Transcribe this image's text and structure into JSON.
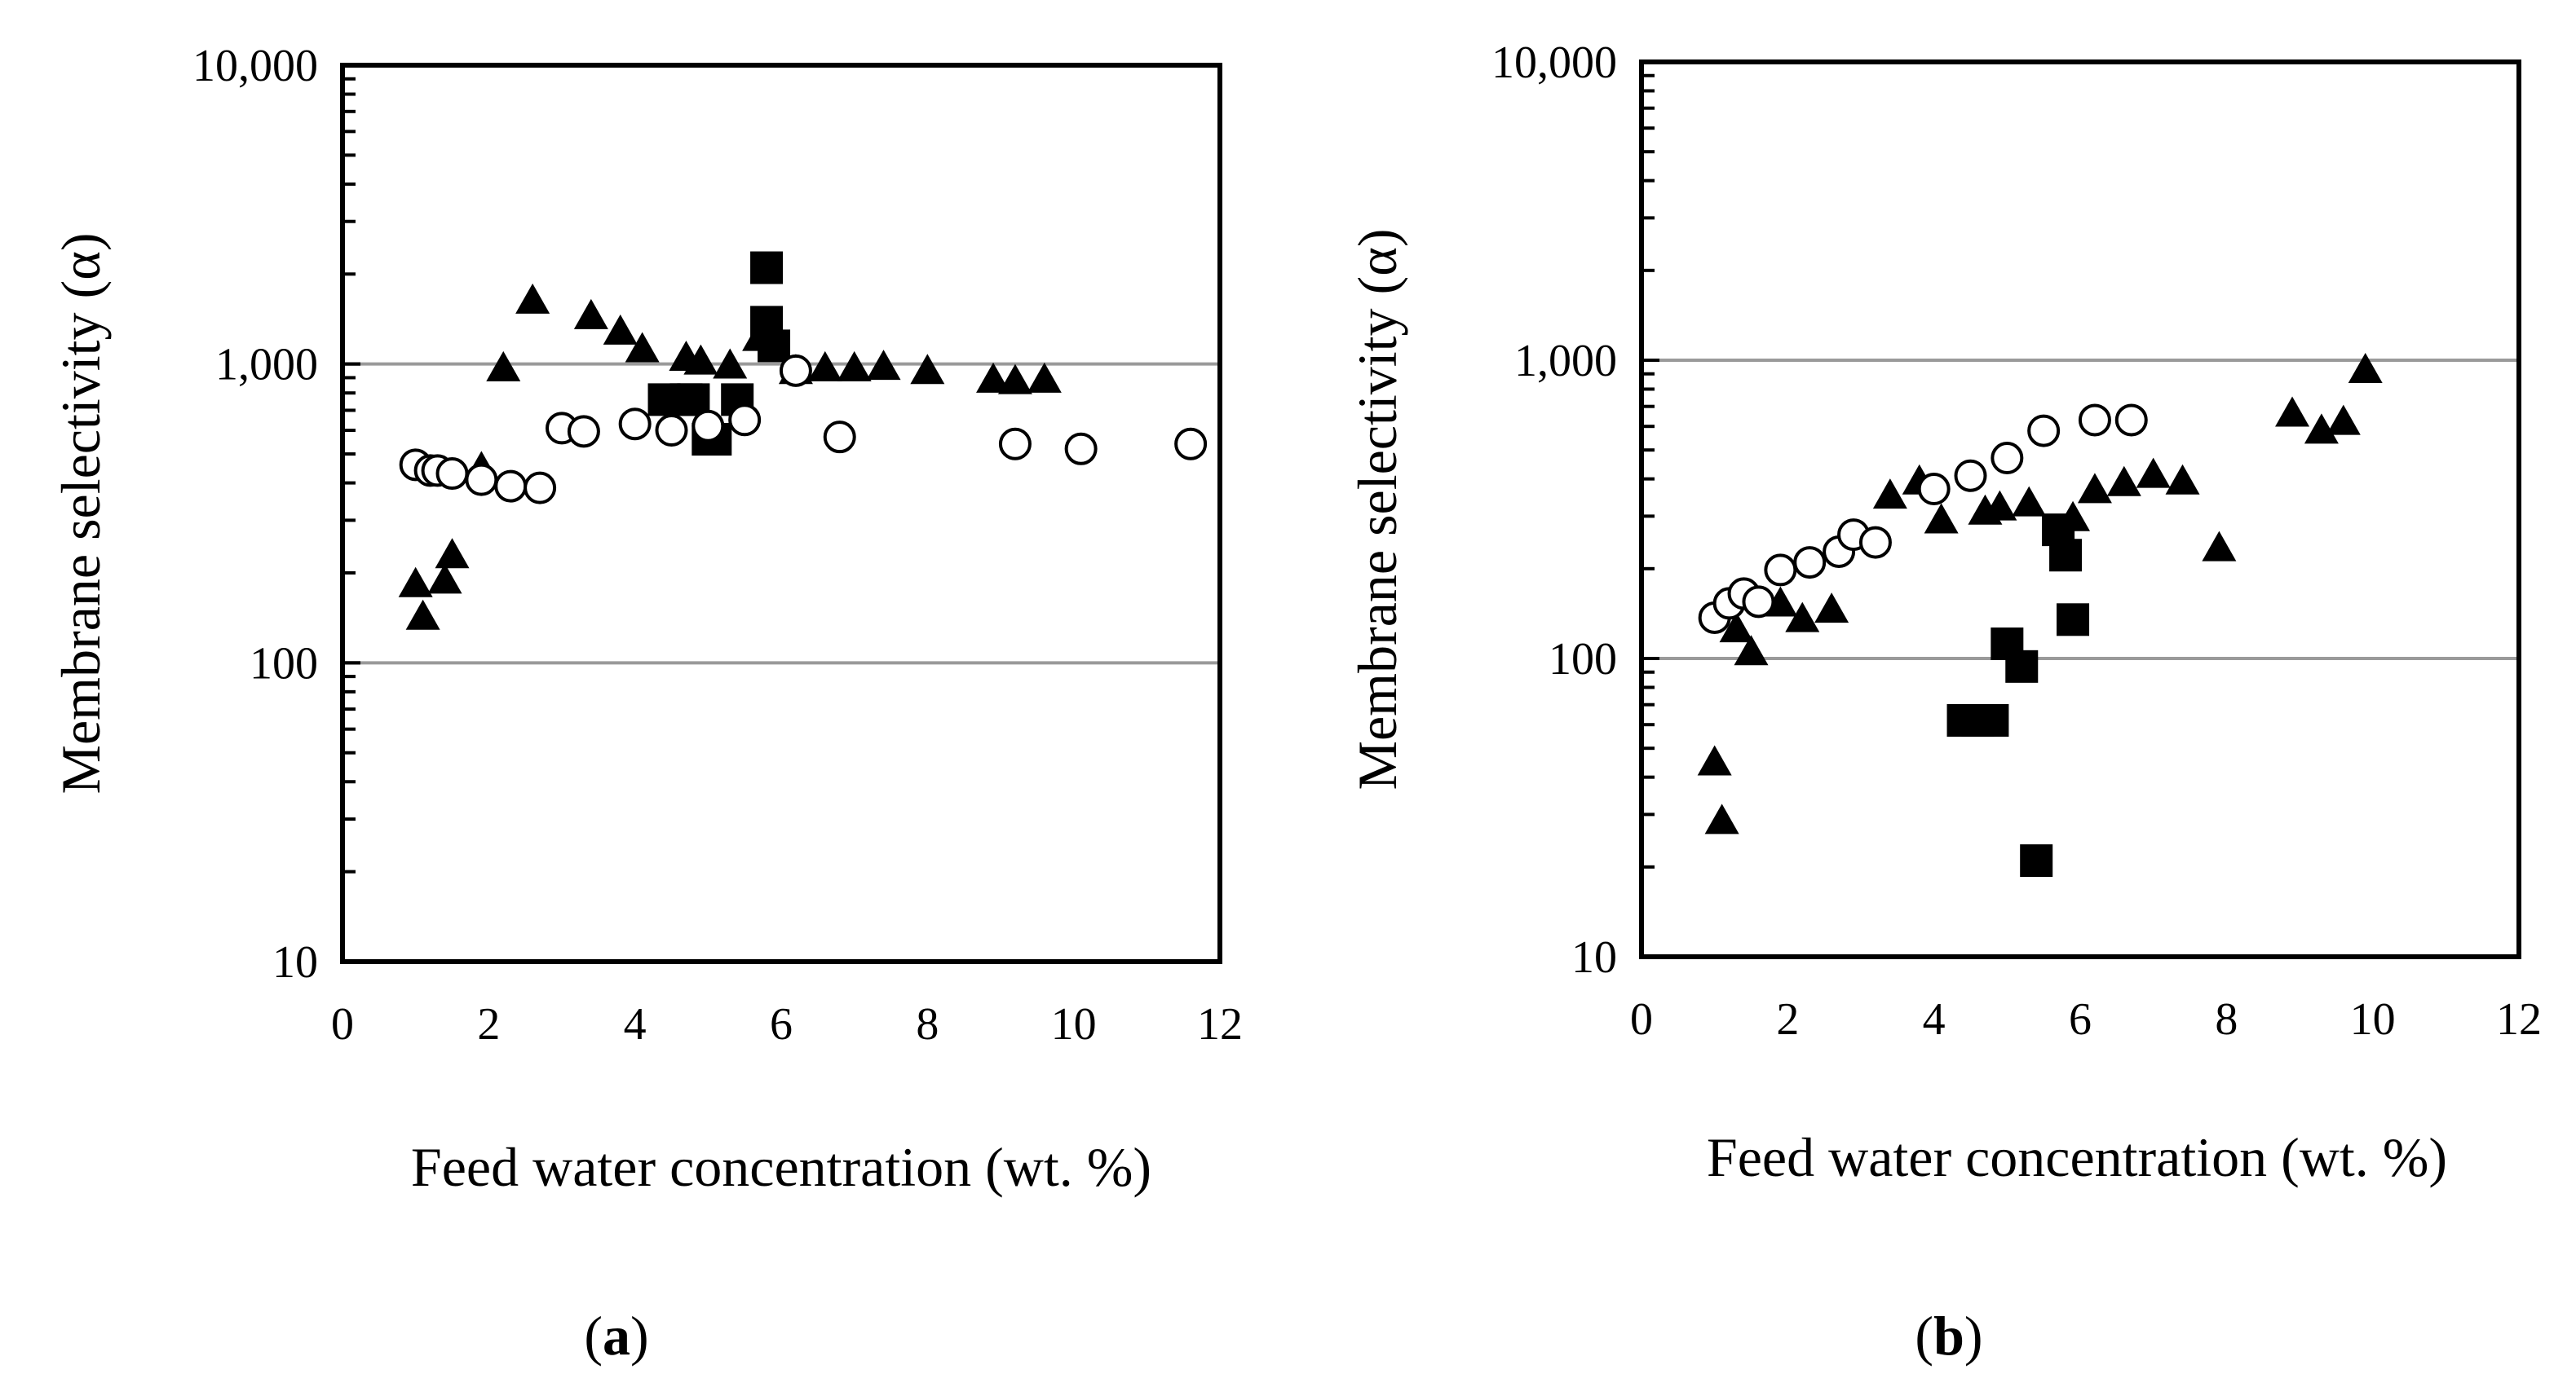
{
  "chart_data": [
    {
      "type": "scatter",
      "panel_label": "a",
      "xlabel": "Feed water concentration (wt. %)",
      "ylabel": "Membrane selectivity (α)",
      "xlim": [
        0,
        12
      ],
      "ylim": [
        10,
        10000
      ],
      "yscale": "log",
      "x_ticks": [
        "0",
        "2",
        "4",
        "6",
        "8",
        "10",
        "12"
      ],
      "y_ticks": [
        "10",
        "100",
        "1,000",
        "10,000"
      ],
      "gridlines_y": [
        100,
        1000
      ],
      "series": [
        {
          "name": "triangle",
          "marker": "filled-triangle",
          "x": [
            1.0,
            1.1,
            1.4,
            1.5,
            1.9,
            2.2,
            2.6,
            3.4,
            3.8,
            4.1,
            4.7,
            4.9,
            5.3,
            5.7,
            6.2,
            6.6,
            7.0,
            7.4,
            8.0,
            8.9,
            9.2,
            9.6
          ],
          "y": [
            180,
            140,
            185,
            225,
            440,
            950,
            1600,
            1420,
            1260,
            1100,
            1030,
            1000,
            970,
            1200,
            930,
            950,
            950,
            960,
            930,
            870,
            860,
            870
          ]
        },
        {
          "name": "square",
          "marker": "filled-square",
          "x": [
            4.4,
            4.7,
            4.8,
            5.0,
            5.1,
            5.4,
            5.8,
            5.8,
            5.9
          ],
          "y": [
            760,
            760,
            760,
            560,
            560,
            760,
            2100,
            1380,
            1150
          ]
        },
        {
          "name": "circle",
          "marker": "open-circle",
          "x": [
            1.0,
            1.2,
            1.3,
            1.5,
            1.9,
            2.3,
            2.7,
            3.0,
            3.3,
            4.0,
            4.5,
            5.0,
            5.5,
            6.2,
            6.8,
            9.2,
            10.1,
            11.6
          ],
          "y": [
            460,
            440,
            440,
            430,
            410,
            390,
            385,
            610,
            595,
            630,
            600,
            620,
            650,
            950,
            570,
            540,
            520,
            540
          ]
        }
      ]
    },
    {
      "type": "scatter",
      "panel_label": "b",
      "xlabel": "Feed water concentration (wt. %)",
      "ylabel": "Membrane selectivity (α)",
      "xlim": [
        0,
        12
      ],
      "ylim": [
        10,
        10000
      ],
      "yscale": "log",
      "x_ticks": [
        "0",
        "2",
        "4",
        "6",
        "8",
        "10",
        "12"
      ],
      "y_ticks": [
        "10",
        "100",
        "1,000",
        "10,000"
      ],
      "gridlines_y": [
        100,
        1000
      ],
      "series": [
        {
          "name": "triangle",
          "marker": "filled-triangle",
          "x": [
            1.0,
            1.1,
            1.3,
            1.5,
            1.9,
            2.2,
            2.6,
            3.4,
            3.8,
            4.1,
            4.7,
            4.9,
            5.3,
            5.9,
            6.2,
            6.6,
            7.0,
            7.4,
            7.9,
            8.9,
            9.3,
            9.6,
            9.9
          ],
          "y": [
            44,
            28,
            123,
            103,
            150,
            133,
            143,
            345,
            385,
            285,
            305,
            315,
            325,
            290,
            360,
            380,
            405,
            385,
            230,
            650,
            570,
            610,
            910
          ]
        },
        {
          "name": "square",
          "marker": "filled-square",
          "x": [
            4.4,
            4.6,
            4.8,
            5.0,
            5.2,
            5.4,
            5.7,
            5.8,
            5.9
          ],
          "y": [
            62,
            62,
            62,
            112,
            94,
            21,
            270,
            222,
            135
          ]
        },
        {
          "name": "circle",
          "marker": "open-circle",
          "x": [
            1.0,
            1.2,
            1.4,
            1.6,
            1.9,
            2.3,
            2.7,
            2.9,
            3.2,
            4.0,
            4.5,
            5.0,
            5.5,
            6.2,
            6.7
          ],
          "y": [
            137,
            153,
            165,
            155,
            198,
            210,
            228,
            260,
            245,
            370,
            410,
            470,
            580,
            630,
            630
          ]
        }
      ]
    }
  ]
}
